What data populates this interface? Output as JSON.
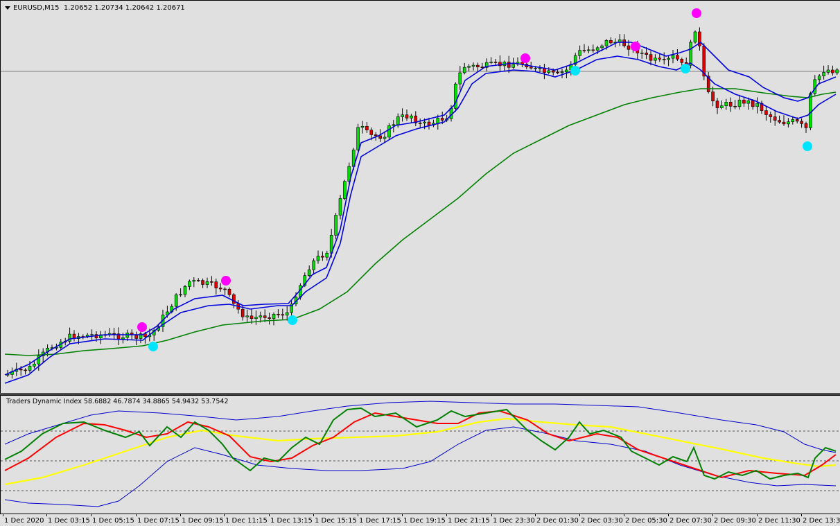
{
  "chart_header": {
    "symbol_timeframe": "EURUSD,M15",
    "prices": "1.20652 1.20734 1.20642 1.20671"
  },
  "indicator": {
    "name": "Traders Dynamic Index",
    "values": "58.6882 46.7874 34.8865 54.9432 53.7542"
  },
  "time_axis": [
    "1 Dec 2020",
    "1 Dec 03:15",
    "1 Dec 05:15",
    "1 Dec 07:15",
    "1 Dec 09:15",
    "1 Dec 11:15",
    "1 Dec 13:15",
    "1 Dec 15:15",
    "1 Dec 17:15",
    "1 Dec 19:15",
    "1 Dec 21:15",
    "1 Dec 23:30",
    "2 Dec 01:30",
    "2 Dec 03:30",
    "2 Dec 05:30",
    "2 Dec 07:30",
    "2 Dec 09:30",
    "2 Dec 11:30",
    "2 Dec 13:30"
  ],
  "colors": {
    "background": "#e0e0e0",
    "bull_candle": "#00e000",
    "bear_candle": "#dd0000",
    "ma_fast": "#0000dd",
    "ma_slow": "#008000",
    "signal_sell": "#ff00ff",
    "signal_buy": "#00e5ff",
    "tdi_green": "#008000",
    "tdi_red": "#ff0000",
    "tdi_yellow": "#ffff00",
    "tdi_band": "#0000cc"
  },
  "chart_data": [
    {
      "type": "candlestick",
      "title": "EURUSD,M15",
      "close_series_approx": [
        {
          "time": "1 Dec 00:00",
          "close": 1.194
        },
        {
          "time": "1 Dec 03:15",
          "close": 1.1965
        },
        {
          "time": "1 Dec 05:15",
          "close": 1.1972
        },
        {
          "time": "1 Dec 07:15",
          "close": 1.197
        },
        {
          "time": "1 Dec 09:15",
          "close": 1.2012
        },
        {
          "time": "1 Dec 11:15",
          "close": 1.1985
        },
        {
          "time": "1 Dec 13:15",
          "close": 1.1995
        },
        {
          "time": "1 Dec 15:15",
          "close": 1.208
        },
        {
          "time": "1 Dec 17:15",
          "close": 1.2115
        },
        {
          "time": "1 Dec 19:15",
          "close": 1.211
        },
        {
          "time": "1 Dec 21:15",
          "close": 1.2152
        },
        {
          "time": "1 Dec 23:30",
          "close": 1.215
        },
        {
          "time": "2 Dec 01:30",
          "close": 1.2152
        },
        {
          "time": "2 Dec 03:30",
          "close": 1.216
        },
        {
          "time": "2 Dec 05:30",
          "close": 1.215
        },
        {
          "time": "2 Dec 07:30",
          "close": 1.213
        },
        {
          "time": "2 Dec 09:30",
          "close": 1.2125
        },
        {
          "time": "2 Dec 11:30",
          "close": 1.2115
        },
        {
          "time": "2 Dec 13:30",
          "close": 1.2067
        }
      ],
      "signals_sell": [
        "1 Dec 07:15",
        "1 Dec 09:45",
        "1 Dec 23:30",
        "2 Dec 04:30",
        "2 Dec 07:45"
      ],
      "signals_buy": [
        "1 Dec 07:30",
        "1 Dec 13:15",
        "2 Dec 01:30",
        "2 Dec 07:15",
        "2 Dec 13:00"
      ]
    },
    {
      "type": "line",
      "title": "Traders Dynamic Index",
      "levels": [
        68,
        50,
        32
      ],
      "series_last": [
        58.6882,
        46.7874,
        34.8865,
        54.9432,
        53.7542
      ]
    }
  ]
}
